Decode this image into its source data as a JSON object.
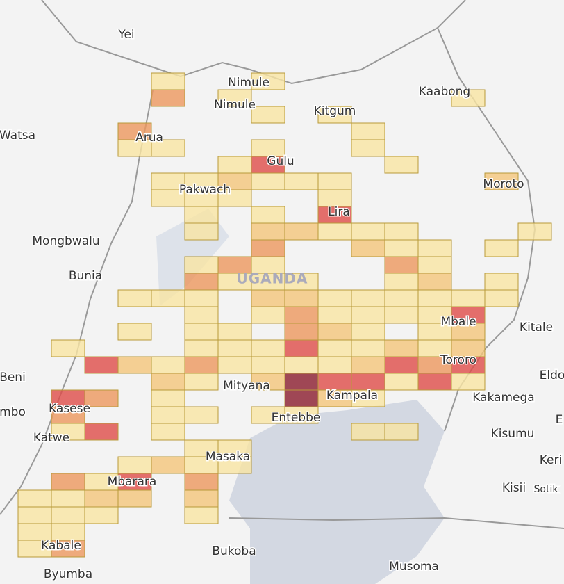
{
  "places": [
    "Yei",
    "Nimule",
    "Nimule",
    "Kitgum",
    "Kaabong",
    "Watsa",
    "Arua",
    "Gulu",
    "Pakwach",
    "Moroto",
    "Lira",
    "Mongbwalu",
    "Bunia",
    "UGANDA",
    "Mbale",
    "Kitale",
    "Beni",
    "Eldo",
    "Tororo",
    "Mityana",
    "Kampala",
    "Kakamega",
    "mbo",
    "Kasese",
    "Entebbe",
    "E",
    "Katwe",
    "Kisumu",
    "Masaka",
    "Keri",
    "Mbarara",
    "Kisii",
    "Sotik",
    "Kabale",
    "Bukoba",
    "Byumba",
    "Musoma"
  ],
  "cells": [
    [
      4,
      0,
      1
    ],
    [
      7,
      0,
      1
    ],
    [
      4,
      1,
      3
    ],
    [
      6,
      1,
      1
    ],
    [
      13,
      1,
      1
    ],
    [
      7,
      2,
      1
    ],
    [
      9,
      2,
      1
    ],
    [
      3,
      3,
      3
    ],
    [
      10,
      3,
      1
    ],
    [
      3,
      4,
      1
    ],
    [
      4,
      4,
      1
    ],
    [
      7,
      4,
      1
    ],
    [
      10,
      4,
      1
    ],
    [
      6,
      5,
      1
    ],
    [
      7,
      5,
      4
    ],
    [
      11,
      5,
      1
    ],
    [
      4,
      6,
      1
    ],
    [
      5,
      6,
      1
    ],
    [
      6,
      6,
      2
    ],
    [
      7,
      6,
      1
    ],
    [
      8,
      6,
      1
    ],
    [
      9,
      6,
      1
    ],
    [
      14,
      6,
      2
    ],
    [
      4,
      7,
      1
    ],
    [
      5,
      7,
      1
    ],
    [
      6,
      7,
      1
    ],
    [
      9,
      7,
      1
    ],
    [
      5,
      8,
      1
    ],
    [
      7,
      8,
      1
    ],
    [
      9,
      8,
      4
    ],
    [
      5,
      9,
      1
    ],
    [
      7,
      9,
      2
    ],
    [
      8,
      9,
      2
    ],
    [
      9,
      9,
      1
    ],
    [
      10,
      9,
      1
    ],
    [
      11,
      9,
      1
    ],
    [
      15,
      9,
      1
    ],
    [
      7,
      10,
      3
    ],
    [
      10,
      10,
      2
    ],
    [
      11,
      10,
      1
    ],
    [
      12,
      10,
      1
    ],
    [
      14,
      10,
      1
    ],
    [
      5,
      11,
      1
    ],
    [
      6,
      11,
      3
    ],
    [
      7,
      11,
      1
    ],
    [
      11,
      11,
      3
    ],
    [
      12,
      11,
      1
    ],
    [
      5,
      12,
      3
    ],
    [
      6,
      12,
      1
    ],
    [
      7,
      12,
      1
    ],
    [
      8,
      12,
      1
    ],
    [
      11,
      12,
      1
    ],
    [
      12,
      12,
      2
    ],
    [
      14,
      12,
      1
    ],
    [
      3,
      13,
      1
    ],
    [
      4,
      13,
      1
    ],
    [
      5,
      13,
      1
    ],
    [
      7,
      13,
      2
    ],
    [
      8,
      13,
      2
    ],
    [
      9,
      13,
      1
    ],
    [
      10,
      13,
      1
    ],
    [
      11,
      13,
      1
    ],
    [
      12,
      13,
      1
    ],
    [
      13,
      13,
      1
    ],
    [
      14,
      13,
      1
    ],
    [
      5,
      14,
      1
    ],
    [
      7,
      14,
      1
    ],
    [
      8,
      14,
      3
    ],
    [
      9,
      14,
      1
    ],
    [
      10,
      14,
      1
    ],
    [
      11,
      14,
      1
    ],
    [
      12,
      14,
      1
    ],
    [
      13,
      14,
      4
    ],
    [
      3,
      15,
      1
    ],
    [
      5,
      15,
      1
    ],
    [
      6,
      15,
      1
    ],
    [
      8,
      15,
      3
    ],
    [
      9,
      15,
      2
    ],
    [
      10,
      15,
      1
    ],
    [
      12,
      15,
      1
    ],
    [
      13,
      15,
      2
    ],
    [
      1,
      16,
      1
    ],
    [
      5,
      16,
      1
    ],
    [
      6,
      16,
      1
    ],
    [
      7,
      16,
      1
    ],
    [
      8,
      16,
      4
    ],
    [
      9,
      16,
      1
    ],
    [
      10,
      16,
      1
    ],
    [
      11,
      16,
      2
    ],
    [
      12,
      16,
      1
    ],
    [
      13,
      16,
      2
    ],
    [
      2,
      17,
      4
    ],
    [
      3,
      17,
      2
    ],
    [
      4,
      17,
      1
    ],
    [
      5,
      17,
      3
    ],
    [
      6,
      17,
      1
    ],
    [
      7,
      17,
      1
    ],
    [
      8,
      17,
      1
    ],
    [
      9,
      17,
      1
    ],
    [
      10,
      17,
      2
    ],
    [
      11,
      17,
      4
    ],
    [
      12,
      17,
      3
    ],
    [
      13,
      17,
      4
    ],
    [
      4,
      18,
      2
    ],
    [
      5,
      18,
      1
    ],
    [
      7,
      18,
      2
    ],
    [
      8,
      18,
      5
    ],
    [
      9,
      18,
      4
    ],
    [
      10,
      18,
      4
    ],
    [
      11,
      18,
      1
    ],
    [
      12,
      18,
      4
    ],
    [
      13,
      18,
      1
    ],
    [
      1,
      19,
      4
    ],
    [
      2,
      19,
      3
    ],
    [
      4,
      19,
      1
    ],
    [
      8,
      19,
      5
    ],
    [
      9,
      19,
      2
    ],
    [
      10,
      19,
      1
    ],
    [
      1,
      20,
      3
    ],
    [
      4,
      20,
      1
    ],
    [
      5,
      20,
      1
    ],
    [
      7,
      20,
      1
    ],
    [
      8,
      20,
      1
    ],
    [
      1,
      21,
      1
    ],
    [
      2,
      21,
      4
    ],
    [
      4,
      21,
      1
    ],
    [
      10,
      21,
      1
    ],
    [
      11,
      21,
      1
    ],
    [
      5,
      22,
      1
    ],
    [
      6,
      22,
      1
    ],
    [
      3,
      23,
      1
    ],
    [
      4,
      23,
      2
    ],
    [
      5,
      23,
      1
    ],
    [
      6,
      23,
      1
    ],
    [
      1,
      24,
      3
    ],
    [
      2,
      24,
      1
    ],
    [
      3,
      24,
      4
    ],
    [
      5,
      24,
      3
    ],
    [
      0,
      25,
      1
    ],
    [
      1,
      25,
      1
    ],
    [
      2,
      25,
      2
    ],
    [
      3,
      25,
      2
    ],
    [
      5,
      25,
      2
    ],
    [
      0,
      26,
      1
    ],
    [
      1,
      26,
      1
    ],
    [
      2,
      26,
      1
    ],
    [
      5,
      26,
      1
    ],
    [
      0,
      27,
      1
    ],
    [
      1,
      27,
      1
    ],
    [
      0,
      28,
      1
    ],
    [
      1,
      28,
      3
    ]
  ]
}
